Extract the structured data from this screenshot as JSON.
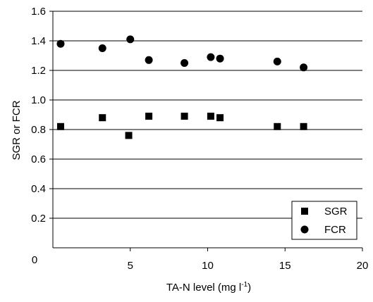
{
  "chart_data": {
    "type": "scatter",
    "title": "",
    "xlabel": "TA-N level (mg l",
    "xlabel_sup": "-1",
    "xlabel_end": ")",
    "ylabel": "SGR or FCR",
    "xlim": [
      0,
      20
    ],
    "ylim": [
      0,
      1.6
    ],
    "x_ticks": [
      0,
      5,
      10,
      15,
      20
    ],
    "x_tick_labels": [
      "0",
      "5",
      "10",
      "15",
      "20"
    ],
    "y_ticks": [
      0.2,
      0.4,
      0.6,
      0.8,
      1.0,
      1.2,
      1.4,
      1.6
    ],
    "y_tick_labels": [
      "0.2",
      "0.4",
      "0.6",
      "0.8",
      "1.0",
      "1.2",
      "1.4",
      "1.6"
    ],
    "grid": "horizontal",
    "legend_position": "bottom-right",
    "series": [
      {
        "name": "SGR",
        "marker": "square",
        "color": "#000000",
        "points": [
          {
            "x": 0.5,
            "y": 0.82
          },
          {
            "x": 3.2,
            "y": 0.88
          },
          {
            "x": 4.9,
            "y": 0.76
          },
          {
            "x": 6.2,
            "y": 0.89
          },
          {
            "x": 8.5,
            "y": 0.89
          },
          {
            "x": 10.2,
            "y": 0.89
          },
          {
            "x": 10.8,
            "y": 0.88
          },
          {
            "x": 14.5,
            "y": 0.82
          },
          {
            "x": 16.2,
            "y": 0.82
          }
        ]
      },
      {
        "name": "FCR",
        "marker": "circle",
        "color": "#000000",
        "points": [
          {
            "x": 0.5,
            "y": 1.38
          },
          {
            "x": 3.2,
            "y": 1.35
          },
          {
            "x": 5.0,
            "y": 1.41
          },
          {
            "x": 6.2,
            "y": 1.27
          },
          {
            "x": 8.5,
            "y": 1.25
          },
          {
            "x": 10.2,
            "y": 1.29
          },
          {
            "x": 10.8,
            "y": 1.28
          },
          {
            "x": 14.5,
            "y": 1.26
          },
          {
            "x": 16.2,
            "y": 1.22
          }
        ]
      }
    ]
  }
}
